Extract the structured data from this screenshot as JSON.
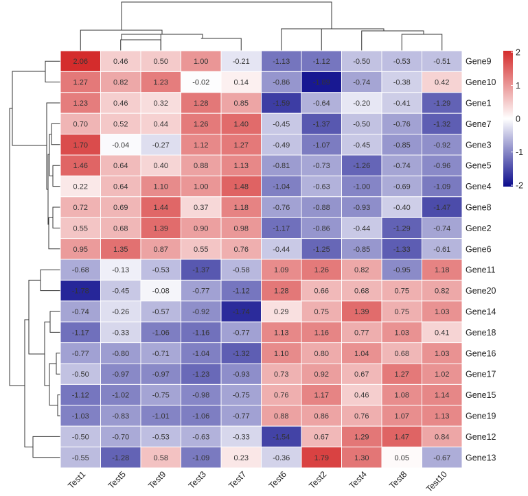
{
  "chart_data": {
    "type": "heatmap",
    "title": "",
    "columns": [
      "Test1",
      "Test5",
      "Test9",
      "Test3",
      "Test7",
      "Test6",
      "Test2",
      "Test4",
      "Test8",
      "Test10"
    ],
    "rows": [
      "Gene9",
      "Gene10",
      "Gene1",
      "Gene7",
      "Gene3",
      "Gene5",
      "Gene4",
      "Gene8",
      "Gene2",
      "Gene6",
      "Gene11",
      "Gene20",
      "Gene14",
      "Gene18",
      "Gene16",
      "Gene17",
      "Gene15",
      "Gene19",
      "Gene12",
      "Gene13"
    ],
    "values": [
      [
        2.06,
        0.46,
        0.5,
        1.0,
        -0.21,
        -1.13,
        -1.12,
        -0.5,
        -0.53,
        -0.51
      ],
      [
        1.27,
        0.82,
        1.23,
        -0.02,
        0.14,
        -0.86,
        -1.89,
        -0.74,
        -0.38,
        0.42
      ],
      [
        1.23,
        0.46,
        0.32,
        1.28,
        0.85,
        -1.59,
        -0.64,
        -0.2,
        -0.41,
        -1.29
      ],
      [
        0.7,
        0.52,
        0.44,
        1.26,
        1.4,
        -0.45,
        -1.37,
        -0.5,
        -0.76,
        -1.32
      ],
      [
        1.7,
        -0.04,
        -0.27,
        1.12,
        1.27,
        -0.49,
        -1.07,
        -0.45,
        -0.85,
        -0.92
      ],
      [
        1.46,
        0.64,
        0.4,
        0.88,
        1.13,
        -0.81,
        -0.73,
        -1.26,
        -0.74,
        -0.96
      ],
      [
        0.22,
        0.64,
        1.1,
        1.0,
        1.48,
        -1.04,
        -0.63,
        -1.0,
        -0.69,
        -1.09
      ],
      [
        0.72,
        0.69,
        1.44,
        0.37,
        1.18,
        -0.76,
        -0.88,
        -0.93,
        -0.4,
        -1.47
      ],
      [
        0.55,
        0.68,
        1.39,
        0.9,
        0.98,
        -1.17,
        -0.86,
        -0.44,
        -1.29,
        -0.74
      ],
      [
        0.95,
        1.35,
        0.87,
        0.55,
        0.76,
        -0.44,
        -1.25,
        -0.85,
        -1.33,
        -0.61
      ],
      [
        -0.68,
        -0.13,
        -0.53,
        -1.37,
        -0.58,
        1.09,
        1.26,
        0.82,
        -0.95,
        1.18
      ],
      [
        -1.78,
        -0.45,
        -0.08,
        -0.77,
        -1.12,
        1.28,
        0.66,
        0.68,
        0.75,
        0.82
      ],
      [
        -0.74,
        -0.26,
        -0.57,
        -0.92,
        -1.74,
        0.29,
        0.75,
        1.39,
        0.75,
        1.03
      ],
      [
        -1.17,
        -0.33,
        -1.06,
        -1.16,
        -0.77,
        1.13,
        1.16,
        0.77,
        1.03,
        0.41
      ],
      [
        -0.77,
        -0.8,
        -0.71,
        -1.04,
        -1.32,
        1.1,
        0.8,
        1.04,
        0.68,
        1.03
      ],
      [
        -0.5,
        -0.97,
        -0.97,
        -1.23,
        -0.93,
        0.73,
        0.92,
        0.67,
        1.27,
        1.02
      ],
      [
        -1.12,
        -1.02,
        -0.75,
        -0.98,
        -0.75,
        0.76,
        1.17,
        0.46,
        1.08,
        1.14
      ],
      [
        -1.03,
        -0.83,
        -1.01,
        -1.06,
        -0.77,
        0.88,
        0.86,
        0.76,
        1.07,
        1.13
      ],
      [
        -0.5,
        -0.7,
        -0.53,
        -0.63,
        -0.33,
        -1.54,
        0.67,
        1.29,
        1.47,
        0.84
      ],
      [
        -0.55,
        -1.28,
        0.58,
        -1.09,
        0.23,
        -0.36,
        1.79,
        1.3,
        0.05,
        -0.67
      ]
    ],
    "color_scale": {
      "min": -2,
      "mid": 0,
      "max": 2,
      "low_color": "#0b0b8c",
      "mid_color": "#ffffff",
      "high_color": "#d42c2c",
      "ticks": [
        "2",
        "1",
        "0",
        "-1",
        "-2"
      ]
    },
    "legend_position": "right",
    "show_cell_values": true,
    "row_dendrogram": true,
    "column_dendrogram": true,
    "column_label_rotation_deg": -45
  }
}
